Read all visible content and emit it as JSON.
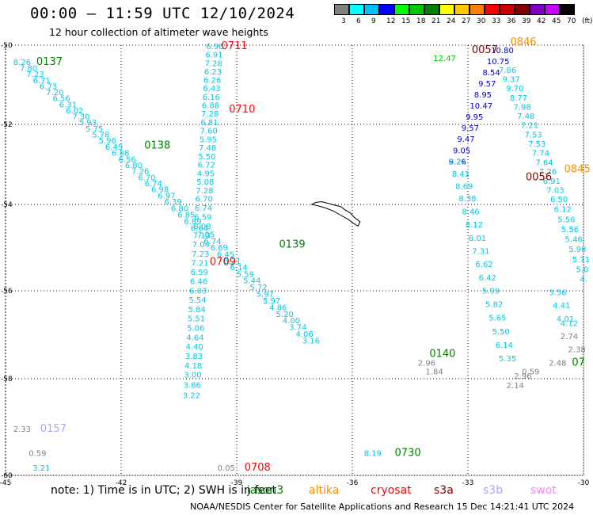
{
  "header": {
    "title": "00:00 – 11:59 UTC 12/10/2024",
    "subtitle": "12 hour collection of altimeter wave heights"
  },
  "legend": {
    "labels": [
      "3",
      "6",
      "9",
      "12",
      "15",
      "18",
      "21",
      "24",
      "27",
      "30",
      "33",
      "36",
      "39",
      "42",
      "45",
      "70",
      "(ft)"
    ],
    "colors": [
      "#808080",
      "#00ffff",
      "#00bfff",
      "#0000ff",
      "#00ff00",
      "#00c800",
      "#008000",
      "#ffff00",
      "#ffc800",
      "#ff8000",
      "#ff0000",
      "#c80000",
      "#800000",
      "#8000c0",
      "#c800ff",
      "#000000"
    ]
  },
  "axes": {
    "lat_labels": [
      "-50",
      "-52",
      "-54",
      "-56",
      "-58",
      "-60"
    ],
    "lon_labels": [
      "-45",
      "-42",
      "-39",
      "-36",
      "-33",
      "-30"
    ]
  },
  "colors": {
    "cyan": "#00c8e6",
    "blue": "#0000c8",
    "gray": "#808080",
    "green": "#008000",
    "lightgreen": "#00c800",
    "red": "#ff0000",
    "darkred": "#800000",
    "orange": "#ff8c00",
    "lavender": "#b4a0ff",
    "pink": "#ff80ff"
  },
  "tracks": [
    {
      "id": "t1",
      "color": "#00c8e6",
      "coords": [
        [
          -44.8,
          -50.5
        ],
        [
          -37.3,
          -57.2
        ]
      ],
      "values": [
        "8.26",
        "7.80",
        "7.23",
        "6.71",
        "6.73",
        "7.20",
        "6.56",
        "6.31",
        "6.02",
        "7.30",
        "5.93",
        "5.75",
        "5.78",
        "5.96",
        "6.49",
        "6.88",
        "6.56",
        "6.80",
        "7.26",
        "6.70",
        "6.74",
        "6.98",
        "6.97",
        "6.39",
        "6.80",
        "6.85",
        "6.89",
        "6.64",
        "7.05",
        "6.74",
        "6.69",
        "6.45",
        "6.21",
        "6.14",
        "5.59",
        "5.44",
        "5.72",
        "5.97",
        "5.97",
        "4.86",
        "5.20",
        "4.00",
        "3.74",
        "4.06",
        "3.16"
      ]
    },
    {
      "id": "t2",
      "color": "#00c8e6",
      "coords": [
        [
          -39.8,
          -50.1
        ],
        [
          -40.4,
          -58.4
        ]
      ],
      "values": [
        "6.96",
        "6.91",
        "7.28",
        "6.23",
        "6.26",
        "6.43",
        "6.16",
        "6.88",
        "7.28",
        "6.81",
        "7.60",
        "5.95",
        "7.48",
        "5.50",
        "6.72",
        "4.95",
        "5.08",
        "7.28",
        "6.70",
        "6.74",
        "6.59",
        "8.08",
        "7.13",
        "7.04",
        "7.23",
        "7.21",
        "6.59",
        "6.46",
        "6.03",
        "5.54",
        "5.84",
        "5.51",
        "5.06",
        "4.64",
        "4.40",
        "3.83",
        "4.18",
        "3.00",
        "3.86",
        "3.22"
      ]
    },
    {
      "id": "t3",
      "color": "#0000c8",
      "coords": [
        [
          -32.4,
          -50.2
        ],
        [
          -33.5,
          -53.0
        ]
      ],
      "values": [
        "10.80",
        "10.75",
        "8.54",
        "9.57",
        "8.95",
        "10.47",
        "9.95",
        "9.57",
        "9.47",
        "9.05",
        "9.26"
      ]
    },
    {
      "id": "t4",
      "color": "#00c8e6",
      "coords": [
        [
          -33.5,
          -53.0
        ],
        [
          -32.2,
          -57.6
        ]
      ],
      "values": [
        "8.21",
        "8.41",
        "8.69",
        "8.38",
        "8.46",
        "8.12",
        "8.01",
        "7.31",
        "6.62",
        "6.42",
        "5.99",
        "5.82",
        "5.65",
        "5.50",
        "6.14",
        "5.35"
      ]
    },
    {
      "id": "t5",
      "color": "#00c8e6",
      "coords": [
        [
          -32.2,
          -50.7
        ],
        [
          -30.1,
          -55.8
        ]
      ],
      "values": [
        "7.86",
        "9.37",
        "9.70",
        "8.77",
        "7.98",
        "7.48",
        "7.21",
        "7.53",
        "7.53",
        "7.74",
        "7.64",
        "7.26",
        "6.91",
        "7.03",
        "6.50",
        "6.12",
        "5.56",
        "5.56",
        "5.46",
        "5.98",
        "5.71",
        "5.0",
        "4."
      ]
    }
  ],
  "labels": [
    {
      "text": "0137",
      "color": "#008000",
      "lon": -44.2,
      "lat": -50.5,
      "size": 13
    },
    {
      "text": "0711",
      "color": "#ff0000",
      "lon": -39.4,
      "lat": -50.1,
      "size": 13
    },
    {
      "text": "0710",
      "color": "#ff0000",
      "lon": -39.2,
      "lat": -51.7,
      "size": 13
    },
    {
      "text": "0138",
      "color": "#008000",
      "lon": -41.4,
      "lat": -52.6,
      "size": 13
    },
    {
      "text": "0709",
      "color": "#ff0000",
      "lon": -39.7,
      "lat": -55.4,
      "size": 13
    },
    {
      "text": "0139",
      "color": "#008000",
      "lon": -37.9,
      "lat": -55.0,
      "size": 13
    },
    {
      "text": "0140",
      "color": "#008000",
      "lon": -34.0,
      "lat": -57.5,
      "size": 13
    },
    {
      "text": "0157",
      "color": "#b4a0ff",
      "lon": -44.1,
      "lat": -59.1,
      "size": 13
    },
    {
      "text": "0708",
      "color": "#ff0000",
      "lon": -38.8,
      "lat": -59.9,
      "size": 13
    },
    {
      "text": "0730",
      "color": "#008000",
      "lon": -34.9,
      "lat": -59.6,
      "size": 13
    },
    {
      "text": "0846",
      "color": "#ff8c00",
      "lon": -31.9,
      "lat": -50.0,
      "size": 13
    },
    {
      "text": "0057",
      "color": "#800000",
      "lon": -32.9,
      "lat": -50.2,
      "size": 13
    },
    {
      "text": "0056",
      "color": "#800000",
      "lon": -31.5,
      "lat": -53.4,
      "size": 13
    },
    {
      "text": "0845",
      "color": "#ff8c00",
      "lon": -30.5,
      "lat": -53.2,
      "size": 13
    },
    {
      "text": "07",
      "color": "#008000",
      "lon": -30.3,
      "lat": -57.7,
      "size": 13
    }
  ],
  "values_extra": [
    {
      "text": "12.47",
      "color": "#00c800",
      "lon": -33.9,
      "lat": -50.4
    },
    {
      "text": "2.96",
      "color": "#808080",
      "lon": -34.3,
      "lat": -57.7
    },
    {
      "text": "1.84",
      "color": "#808080",
      "lon": -34.1,
      "lat": -57.9
    },
    {
      "text": "2.33",
      "color": "#808080",
      "lon": -44.8,
      "lat": -59.1
    },
    {
      "text": "0.59",
      "color": "#808080",
      "lon": -44.4,
      "lat": -59.6
    },
    {
      "text": "3.21",
      "color": "#00c8e6",
      "lon": -44.3,
      "lat": -59.9
    },
    {
      "text": "0.05",
      "color": "#808080",
      "lon": -39.5,
      "lat": -59.9
    },
    {
      "text": "8.19",
      "color": "#00c8e6",
      "lon": -35.7,
      "lat": -59.6
    },
    {
      "text": "3.56",
      "color": "#00c8e6",
      "lon": -30.9,
      "lat": -56.1
    },
    {
      "text": "4.41",
      "color": "#00c8e6",
      "lon": -30.8,
      "lat": -56.4
    },
    {
      "text": "4.01",
      "color": "#00c8e6",
      "lon": -30.7,
      "lat": -56.7
    },
    {
      "text": "4.12",
      "color": "#00c8e6",
      "lon": -30.6,
      "lat": -56.8
    },
    {
      "text": "2.74",
      "color": "#808080",
      "lon": -30.6,
      "lat": -57.1
    },
    {
      "text": "2.38",
      "color": "#808080",
      "lon": -30.4,
      "lat": -57.4
    },
    {
      "text": "2.48",
      "color": "#808080",
      "lon": -30.9,
      "lat": -57.7
    },
    {
      "text": "0.59",
      "color": "#808080",
      "lon": -31.6,
      "lat": -57.9
    },
    {
      "text": "2.96",
      "color": "#808080",
      "lon": -31.8,
      "lat": -58.0
    },
    {
      "text": "2.14",
      "color": "#808080",
      "lon": -32.0,
      "lat": -58.2
    }
  ],
  "note": {
    "text": "note: 1) Time is in UTC; 2) SWH is in feet",
    "satellites": [
      {
        "name": "jason3",
        "color": "#008000"
      },
      {
        "name": "altika",
        "color": "#ff8c00"
      },
      {
        "name": "cryosat",
        "color": "#ff0000"
      },
      {
        "name": "s3a",
        "color": "#800000"
      },
      {
        "name": "s3b",
        "color": "#b4a0ff"
      },
      {
        "name": "swot",
        "color": "#ff80ff"
      }
    ]
  },
  "footer": "NOAA/NESDIS Center for Satellite Applications and Research   15 Dec 14:21:41 UTC 2024"
}
